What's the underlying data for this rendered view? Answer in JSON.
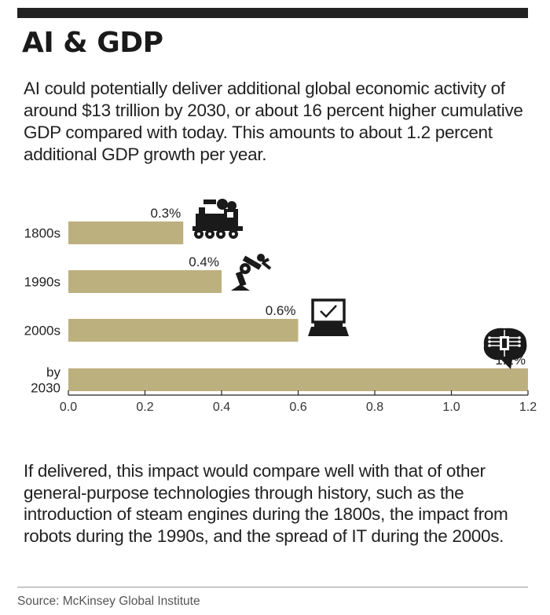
{
  "title": "AI & GDP",
  "intro": "AI could potentially deliver additional global economic activity of around $13 trillion by 2030, or about 16 percent higher cumulative GDP compared with today. This amounts to about 1.2 percent additional GDP growth per year.",
  "closing": "If delivered, this impact would compare well with that of other general-purpose technologies through history, such as the introduction of steam engines during the 1800s, the impact from robots during the 1990s, and the spread of IT during the 2000s.",
  "source": "Source: McKinsey Global Institute",
  "colors": {
    "bar": "#bdb07f",
    "text": "#1a1a1a",
    "icon": "#1a1a1a"
  },
  "chart_data": {
    "type": "bar",
    "orientation": "horizontal",
    "categories": [
      [
        "1800s"
      ],
      [
        "1990s"
      ],
      [
        "2000s"
      ],
      [
        "by",
        "2030"
      ]
    ],
    "values": [
      0.3,
      0.4,
      0.6,
      1.2
    ],
    "value_labels": [
      "0.3%",
      "0.4%",
      "0.6%",
      "1.2%"
    ],
    "icons": [
      "steam-locomotive-icon",
      "robot-arm-icon",
      "laptop-icon",
      "brain-chip-icon"
    ],
    "xlim": [
      0,
      1.2
    ],
    "xticks": [
      "0.0",
      "0.2",
      "0.4",
      "0.6",
      "0.8",
      "1.0",
      "1.2"
    ],
    "grid": false,
    "legend": "none"
  }
}
